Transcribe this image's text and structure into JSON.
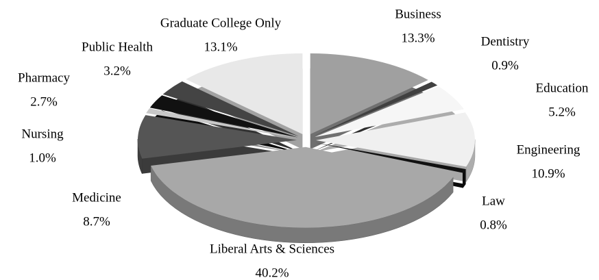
{
  "chart_data": {
    "type": "pie3d",
    "categories": [
      "Business",
      "Dentistry",
      "Education",
      "Engineering",
      "Law",
      "Liberal Arts & Sciences",
      "Medicine",
      "Nursing",
      "Pharmacy",
      "Public Health",
      "Graduate College Only"
    ],
    "values": [
      13.3,
      0.9,
      5.2,
      10.9,
      0.8,
      40.2,
      8.7,
      1.0,
      2.7,
      3.2,
      13.1
    ],
    "value_labels": [
      "13.3%",
      "0.9%",
      "5.2%",
      "10.9%",
      "0.8%",
      "40.2%",
      "8.7%",
      "1.0%",
      "2.7%",
      "3.2%",
      "13.1%"
    ],
    "colors": [
      "#a0a0a0",
      "#404040",
      "#f6f6f6",
      "#f0f0f0",
      "#111111",
      "#a8a8a8",
      "#555555",
      "#c8c8c8",
      "#111111",
      "#444444",
      "#e8e8e8"
    ]
  }
}
